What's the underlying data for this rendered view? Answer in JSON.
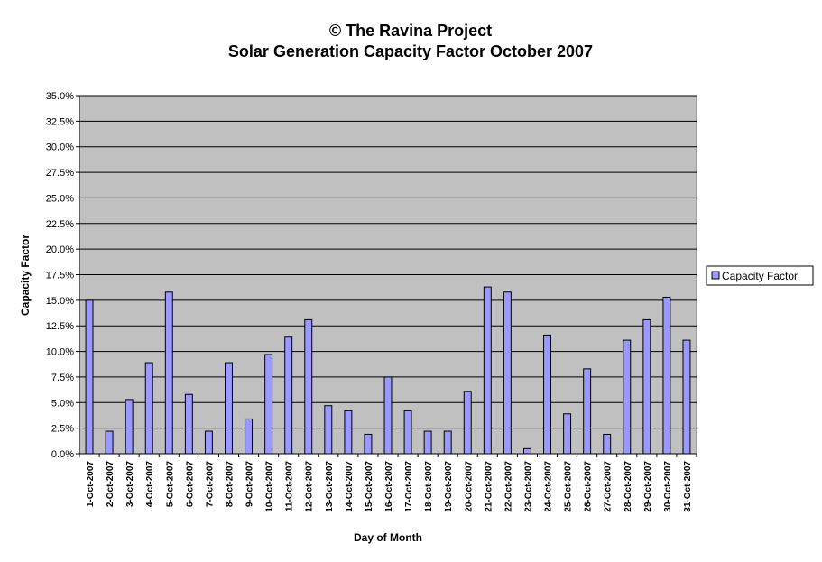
{
  "chart_data": {
    "type": "bar",
    "title": "© The Ravina Project",
    "subtitle": "Solar Generation Capacity Factor October 2007",
    "xlabel": "Day of Month",
    "ylabel": "Capacity Factor",
    "ylim": [
      0,
      0.35
    ],
    "y_tick_labels": [
      "0.0%",
      "2.5%",
      "5.0%",
      "7.5%",
      "10.0%",
      "12.5%",
      "15.0%",
      "17.5%",
      "20.0%",
      "22.5%",
      "25.0%",
      "27.5%",
      "30.0%",
      "32.5%",
      "35.0%"
    ],
    "grid": true,
    "legend_position": "right",
    "categories": [
      "1-Oct-2007",
      "2-Oct-2007",
      "3-Oct-2007",
      "4-Oct-2007",
      "5-Oct-2007",
      "6-Oct-2007",
      "7-Oct-2007",
      "8-Oct-2007",
      "9-Oct-2007",
      "10-Oct-2007",
      "11-Oct-2007",
      "12-Oct-2007",
      "13-Oct-2007",
      "14-Oct-2007",
      "15-Oct-2007",
      "16-Oct-2007",
      "17-Oct-2007",
      "18-Oct-2007",
      "19-Oct-2007",
      "20-Oct-2007",
      "21-Oct-2007",
      "22-Oct-2007",
      "23-Oct-2007",
      "24-Oct-2007",
      "25-Oct-2007",
      "26-Oct-2007",
      "27-Oct-2007",
      "28-Oct-2007",
      "29-Oct-2007",
      "30-Oct-2007",
      "31-Oct-2007"
    ],
    "series": [
      {
        "name": "Capacity Factor",
        "color": "#9999ff",
        "values": [
          0.15,
          0.022,
          0.053,
          0.089,
          0.158,
          0.058,
          0.022,
          0.089,
          0.034,
          0.097,
          0.114,
          0.131,
          0.047,
          0.042,
          0.019,
          0.075,
          0.042,
          0.022,
          0.022,
          0.061,
          0.163,
          0.158,
          0.005,
          0.116,
          0.039,
          0.083,
          0.019,
          0.111,
          0.131,
          0.153,
          0.111
        ]
      }
    ],
    "colors": {
      "plot_bg": "#c0c0c0",
      "bar_fill": "#9999ff",
      "bar_stroke": "#000000",
      "gridline": "#000000"
    }
  }
}
